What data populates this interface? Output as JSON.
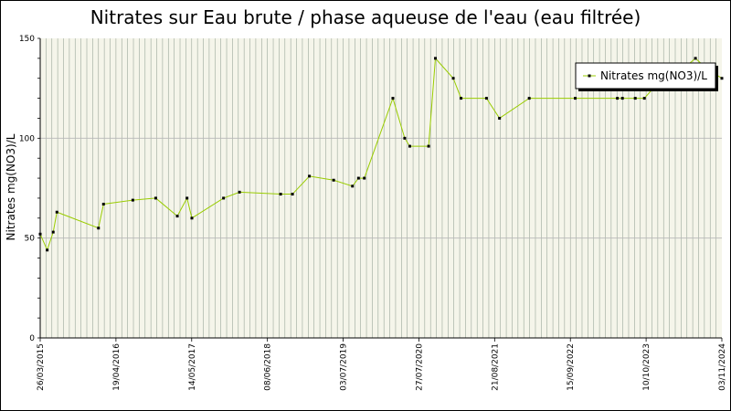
{
  "chart_data": {
    "type": "line",
    "title": "Nitrates sur Eau brute / phase aqueuse de l'eau (eau filtrée)",
    "ylabel": "Nitrates mg(NO3)/L",
    "xlabel": "",
    "ylim": [
      0,
      150
    ],
    "yticks": [
      0,
      50,
      100,
      150
    ],
    "xlim": [
      "2015-03-26",
      "2024-11-03"
    ],
    "xticks": [
      "26/03/2015",
      "19/04/2016",
      "14/05/2017",
      "08/06/2018",
      "03/07/2019",
      "27/07/2020",
      "21/08/2021",
      "15/09/2022",
      "10/10/2023",
      "03/11/2024"
    ],
    "grid": true,
    "legend": "top-right",
    "series_color": "#99cc00",
    "series": [
      {
        "name": "Nitrates mg(NO3)/L",
        "x": [
          "2015-03-26",
          "2015-05-01",
          "2015-06-01",
          "2015-06-20",
          "2016-01-20",
          "2016-02-15",
          "2016-07-15",
          "2016-11-10",
          "2017-03-01",
          "2017-04-20",
          "2017-05-15",
          "2017-10-25",
          "2018-01-15",
          "2018-08-15",
          "2018-10-15",
          "2019-01-10",
          "2019-05-15",
          "2019-08-20",
          "2019-09-20",
          "2019-10-20",
          "2020-03-15",
          "2020-05-15",
          "2020-06-10",
          "2020-09-15",
          "2020-10-20",
          "2021-01-20",
          "2021-03-01",
          "2021-07-10",
          "2021-09-15",
          "2022-02-15",
          "2022-10-10",
          "2023-05-15",
          "2023-06-10",
          "2023-08-15",
          "2023-10-01",
          "2024-02-15",
          "2024-05-15",
          "2024-06-20",
          "2024-08-15",
          "2024-11-03"
        ],
        "y": [
          52,
          44,
          53,
          63,
          55,
          67,
          69,
          70,
          61,
          70,
          60,
          70,
          73,
          72,
          72,
          81,
          79,
          76,
          80,
          80,
          120,
          100,
          96,
          96,
          140,
          130,
          120,
          120,
          110,
          120,
          120,
          120,
          120,
          120,
          120,
          135,
          137,
          140,
          135,
          130
        ]
      }
    ]
  }
}
